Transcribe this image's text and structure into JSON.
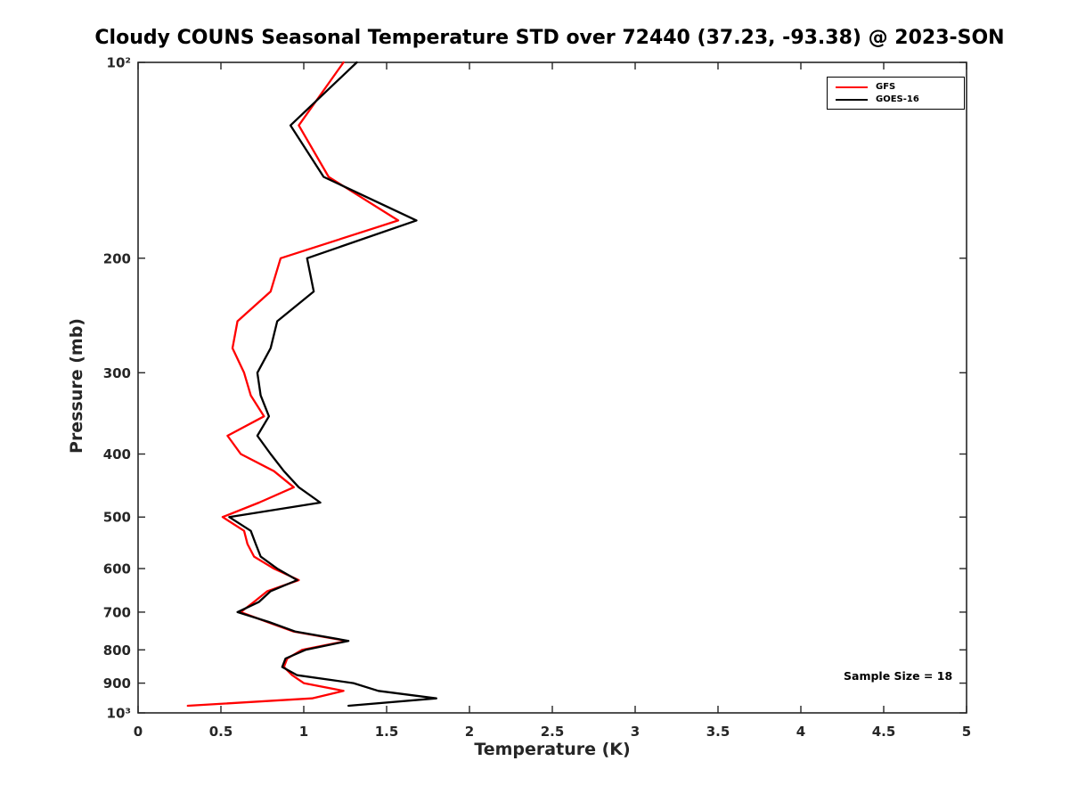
{
  "chart_data": {
    "type": "line",
    "title": "Cloudy COUNS Seasonal Temperature STD over 72440 (37.23, -93.38) @ 2023-SON",
    "xlabel": "Temperature (K)",
    "ylabel": "Pressure (mb)",
    "xlim": [
      0,
      5
    ],
    "xticks": [
      0,
      0.5,
      1,
      1.5,
      2,
      2.5,
      3,
      3.5,
      4,
      4.5,
      5
    ],
    "xtick_labels": [
      "0",
      "0.5",
      "1",
      "1.5",
      "2",
      "2.5",
      "3",
      "3.5",
      "4",
      "4.5",
      "5"
    ],
    "y_scale": "log",
    "y_inverted": true,
    "ylim": [
      100,
      1000
    ],
    "yticks": [
      100,
      200,
      300,
      400,
      500,
      600,
      700,
      800,
      900,
      1000
    ],
    "ytick_labels": [
      "10²",
      "200",
      "300",
      "400",
      "500",
      "600",
      "700",
      "800",
      "900",
      "10³"
    ],
    "grid": false,
    "legend_position": "top-right",
    "annotation": "Sample Size = 18",
    "pressure_levels": [
      100,
      125,
      150,
      175,
      200,
      225,
      250,
      275,
      300,
      325,
      350,
      375,
      400,
      425,
      450,
      475,
      500,
      525,
      550,
      575,
      600,
      625,
      650,
      675,
      700,
      725,
      750,
      775,
      800,
      825,
      850,
      875,
      900,
      925,
      950,
      975
    ],
    "series": [
      {
        "name": "GFS",
        "color": "#ff0000",
        "values": [
          1.24,
          0.97,
          1.15,
          1.57,
          0.86,
          0.8,
          0.6,
          0.57,
          0.64,
          0.68,
          0.76,
          0.54,
          0.62,
          0.82,
          0.94,
          0.73,
          0.51,
          0.64,
          0.66,
          0.7,
          0.82,
          0.97,
          0.78,
          0.7,
          0.62,
          0.78,
          0.94,
          1.26,
          0.99,
          0.9,
          0.88,
          0.93,
          1.0,
          1.24,
          1.05,
          0.3
        ]
      },
      {
        "name": "GOES-16",
        "color": "#000000",
        "values": [
          1.32,
          0.92,
          1.12,
          1.68,
          1.02,
          1.06,
          0.84,
          0.8,
          0.72,
          0.74,
          0.79,
          0.72,
          0.8,
          0.88,
          0.97,
          1.1,
          0.55,
          0.68,
          0.71,
          0.74,
          0.84,
          0.96,
          0.8,
          0.73,
          0.6,
          0.79,
          0.95,
          1.27,
          1.01,
          0.89,
          0.87,
          0.96,
          1.3,
          1.45,
          1.8,
          1.27
        ]
      }
    ]
  }
}
